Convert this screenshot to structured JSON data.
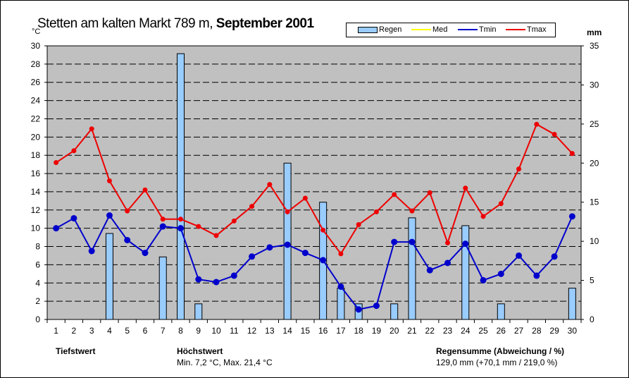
{
  "title_plain": "Stetten am kalten Markt  789 m, ",
  "title_bold": "September 2001",
  "left_unit": "°C",
  "right_unit": "mm",
  "footer": {
    "min_label": "Tiefstwert",
    "max_label": "Höchstwert",
    "minmax_text": "Min. 7,2 °C,  Max. 21,4 °C",
    "rain_label": "Regensumme (Abweichung / %)",
    "rain_text": "129,0 mm (+70,1 mm / 219,0 %)"
  },
  "chart_data": {
    "type": "bar+line",
    "title": "Stetten am kalten Markt 789 m, September 2001",
    "x": [
      1,
      2,
      3,
      4,
      5,
      6,
      7,
      8,
      9,
      10,
      11,
      12,
      13,
      14,
      15,
      16,
      17,
      18,
      19,
      20,
      21,
      22,
      23,
      24,
      25,
      26,
      27,
      28,
      29,
      30
    ],
    "ylim": [
      0,
      30
    ],
    "yticks": [
      0,
      2,
      4,
      6,
      8,
      10,
      12,
      14,
      16,
      18,
      20,
      22,
      24,
      26,
      28,
      30
    ],
    "y2lim": [
      0,
      35
    ],
    "y2ticks": [
      0,
      5,
      10,
      15,
      20,
      25,
      30,
      35
    ],
    "legend": [
      "Regen",
      "Med",
      "Tmin",
      "Tmax"
    ],
    "colors": {
      "Regen": "#99ccff",
      "Med": "#ffff00",
      "Tmin": "#0000cc",
      "Tmax": "#ee0000",
      "plot_bg": "#c0c0c0"
    },
    "series": [
      {
        "name": "Regen",
        "axis": "right",
        "values": [
          0,
          0,
          0,
          11,
          0,
          0,
          8,
          34,
          2,
          0,
          0,
          0,
          0,
          20,
          0,
          15,
          4,
          2,
          0,
          2,
          13,
          0,
          0,
          12,
          0,
          2,
          0,
          0,
          0,
          4
        ]
      },
      {
        "name": "Tmin",
        "axis": "left",
        "values": [
          10.0,
          11.1,
          7.5,
          11.4,
          8.7,
          7.3,
          10.2,
          10.0,
          4.4,
          4.1,
          4.8,
          6.9,
          7.9,
          8.2,
          7.3,
          6.5,
          3.6,
          1.1,
          1.5,
          8.5,
          8.5,
          5.4,
          6.2,
          8.3,
          4.3,
          5.0,
          7.0,
          4.8,
          6.9,
          11.3
        ]
      },
      {
        "name": "Tmax",
        "axis": "left",
        "values": [
          17.2,
          18.5,
          20.9,
          15.2,
          11.9,
          14.2,
          11.0,
          11.0,
          10.2,
          9.2,
          10.8,
          12.4,
          14.8,
          11.8,
          13.3,
          9.8,
          7.2,
          10.4,
          11.8,
          13.7,
          11.9,
          13.9,
          8.4,
          14.4,
          11.3,
          12.7,
          16.5,
          21.4,
          20.3,
          18.2
        ]
      }
    ]
  }
}
